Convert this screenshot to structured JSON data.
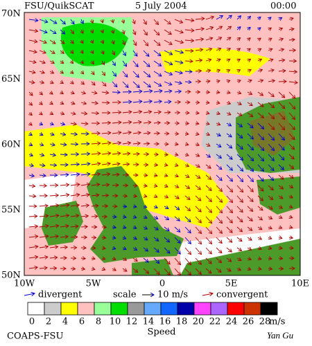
{
  "header": {
    "source": "FSU/QuikSCAT",
    "date": "5 July 2004",
    "time": "00:00"
  },
  "lat_labels": [
    "70N",
    "65N",
    "60N",
    "55N",
    "50N"
  ],
  "lon_labels": [
    "10W",
    "5W",
    "0",
    "5E",
    "10E"
  ],
  "legend": {
    "divergent": "divergent",
    "scale": "scale",
    "scale_value": "10 m/s",
    "convergent": "convergent"
  },
  "colorbar": {
    "labels": [
      "0",
      "2",
      "4",
      "6",
      "8",
      "10",
      "12",
      "14",
      "16",
      "18",
      "20",
      "22",
      "24",
      "26",
      "28"
    ],
    "colors": [
      "#ffffff",
      "#cccccc",
      "#ffff00",
      "#ffc0c0",
      "#99ff99",
      "#00dd00",
      "#999999",
      "#66aaff",
      "#1166ff",
      "#0000aa",
      "#ff44ff",
      "#aa66ff",
      "#ff0000",
      "#cc3300",
      "#000000"
    ],
    "unit": "m/s",
    "title": "Speed"
  },
  "footer": {
    "left": "COAPS-FSU",
    "right": "Yan Gu"
  }
}
